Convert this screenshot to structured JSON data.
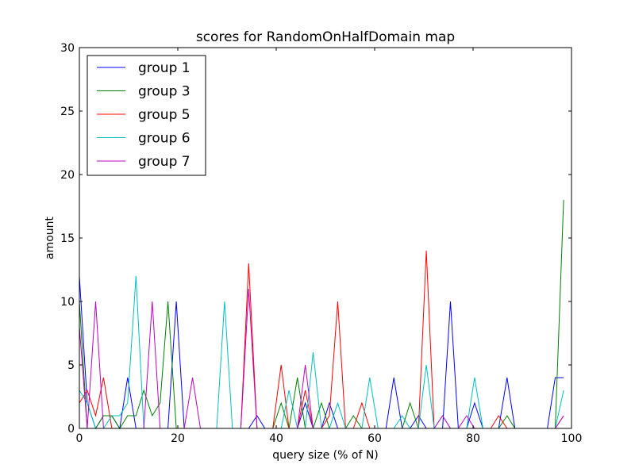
{
  "chart_data": {
    "type": "line",
    "title": "scores for RandomOnHalfDomain map",
    "xlabel": "query size (% of N)",
    "ylabel": "amount",
    "xlim": [
      0,
      100
    ],
    "ylim": [
      0,
      30
    ],
    "xticks": [
      0,
      20,
      40,
      60,
      80,
      100
    ],
    "yticks": [
      0,
      5,
      10,
      15,
      20,
      25,
      30
    ],
    "grid": false,
    "legend_position": "upper-left",
    "series": [
      {
        "name": "group 1",
        "color": "#0000ff",
        "x": [
          0,
          1.6,
          3.3,
          4.9,
          6.6,
          8.2,
          9.8,
          11.5,
          13.1,
          14.8,
          16.4,
          18,
          19.7,
          21.3,
          23,
          24.6,
          26.2,
          27.9,
          29.5,
          31.1,
          32.8,
          34.4,
          36.1,
          37.7,
          39.3,
          41,
          42.6,
          44.3,
          45.9,
          47.5,
          49.2,
          50.8,
          52.5,
          54.1,
          55.7,
          57.4,
          59,
          60.7,
          62.3,
          63.9,
          65.6,
          67.2,
          68.9,
          70.5,
          72.1,
          73.8,
          75.4,
          77,
          78.7,
          80.3,
          82,
          83.6,
          85.2,
          86.9,
          88.5,
          90.2,
          91.8,
          93.4,
          95.1,
          96.7,
          98.4
        ],
        "y": [
          12,
          2,
          0,
          1,
          1,
          0,
          4,
          0,
          0,
          0,
          0,
          0,
          10,
          0,
          0,
          0,
          0,
          0,
          0,
          0,
          0,
          0,
          1,
          0,
          0,
          0,
          0,
          0,
          2,
          0,
          0,
          2,
          0,
          0,
          0,
          0,
          0,
          0,
          0,
          4,
          0,
          0,
          1,
          0,
          0,
          0,
          10,
          0,
          0,
          2,
          0,
          0,
          0,
          4,
          0,
          0,
          0,
          0,
          0,
          4,
          4
        ]
      },
      {
        "name": "group 3",
        "color": "#008000",
        "x": [
          0,
          1.6,
          3.3,
          4.9,
          6.6,
          8.2,
          9.8,
          11.5,
          13.1,
          14.8,
          16.4,
          18,
          19.7,
          21.3,
          23,
          24.6,
          26.2,
          27.9,
          29.5,
          31.1,
          32.8,
          34.4,
          36.1,
          37.7,
          39.3,
          41,
          42.6,
          44.3,
          45.9,
          47.5,
          49.2,
          50.8,
          52.5,
          54.1,
          55.7,
          57.4,
          59,
          60.7,
          62.3,
          63.9,
          65.6,
          67.2,
          68.9,
          70.5,
          72.1,
          73.8,
          75.4,
          77,
          78.7,
          80.3,
          82,
          83.6,
          85.2,
          86.9,
          88.5,
          90.2,
          91.8,
          93.4,
          95.1,
          96.7,
          98.4
        ],
        "y": [
          10,
          0,
          0,
          1,
          1,
          0,
          1,
          1,
          3,
          1,
          2,
          10,
          0,
          0,
          0,
          0,
          0,
          0,
          0,
          0,
          0,
          0,
          0,
          0,
          0,
          2,
          0,
          4,
          0,
          0,
          2,
          0,
          0,
          0,
          1,
          0,
          0,
          0,
          0,
          0,
          0,
          2,
          0,
          0,
          0,
          0,
          0,
          0,
          0,
          0,
          0,
          0,
          0,
          1,
          0,
          0,
          0,
          0,
          0,
          0,
          18
        ]
      },
      {
        "name": "group 5",
        "color": "#ff0000",
        "x": [
          0,
          1.6,
          3.3,
          4.9,
          6.6,
          8.2,
          9.8,
          11.5,
          13.1,
          14.8,
          16.4,
          18,
          19.7,
          21.3,
          23,
          24.6,
          26.2,
          27.9,
          29.5,
          31.1,
          32.8,
          34.4,
          36.1,
          37.7,
          39.3,
          41,
          42.6,
          44.3,
          45.9,
          47.5,
          49.2,
          50.8,
          52.5,
          54.1,
          55.7,
          57.4,
          59,
          60.7,
          62.3,
          63.9,
          65.6,
          67.2,
          68.9,
          70.5,
          72.1,
          73.8,
          75.4,
          77,
          78.7,
          80.3,
          82,
          83.6,
          85.2,
          86.9,
          88.5,
          90.2,
          91.8,
          93.4,
          95.1,
          96.7,
          98.4
        ],
        "y": [
          2,
          3,
          1,
          4,
          0,
          0,
          0,
          0,
          0,
          0,
          0,
          0,
          0,
          0,
          0,
          0,
          0,
          0,
          0,
          0,
          0,
          13,
          0,
          0,
          0,
          5,
          0,
          0,
          3,
          0,
          0,
          1,
          10,
          0,
          0,
          2,
          0,
          0,
          0,
          0,
          0,
          0,
          0,
          14,
          0,
          0,
          0,
          0,
          0,
          0,
          0,
          0,
          1,
          0,
          0,
          0,
          0,
          0,
          0,
          0,
          1
        ]
      },
      {
        "name": "group 6",
        "color": "#00bfbf",
        "x": [
          0,
          1.6,
          3.3,
          4.9,
          6.6,
          8.2,
          9.8,
          11.5,
          13.1,
          14.8,
          16.4,
          18,
          19.7,
          21.3,
          23,
          24.6,
          26.2,
          27.9,
          29.5,
          31.1,
          32.8,
          34.4,
          36.1,
          37.7,
          39.3,
          41,
          42.6,
          44.3,
          45.9,
          47.5,
          49.2,
          50.8,
          52.5,
          54.1,
          55.7,
          57.4,
          59,
          60.7,
          62.3,
          63.9,
          65.6,
          67.2,
          68.9,
          70.5,
          72.1,
          73.8,
          75.4,
          77,
          78.7,
          80.3,
          82,
          83.6,
          85.2,
          86.9,
          88.5,
          90.2,
          91.8,
          93.4,
          95.1,
          96.7,
          98.4
        ],
        "y": [
          3,
          2,
          0,
          0,
          1,
          1,
          2,
          12,
          0,
          0,
          0,
          0,
          0,
          0,
          0,
          0,
          0,
          0,
          10,
          0,
          0,
          0,
          0,
          0,
          0,
          0,
          3,
          0,
          0,
          6,
          0,
          0,
          2,
          0,
          0,
          0,
          4,
          0,
          0,
          0,
          1,
          0,
          0,
          5,
          0,
          1,
          0,
          0,
          0,
          4,
          0,
          0,
          0,
          0,
          0,
          0,
          0,
          0,
          0,
          0,
          3
        ]
      },
      {
        "name": "group 7",
        "color": "#bf00bf",
        "x": [
          0,
          1.6,
          3.3,
          4.9,
          6.6,
          8.2,
          9.8,
          11.5,
          13.1,
          14.8,
          16.4,
          18,
          19.7,
          21.3,
          23,
          24.6,
          26.2,
          27.9,
          29.5,
          31.1,
          32.8,
          34.4,
          36.1,
          37.7,
          39.3,
          41,
          42.6,
          44.3,
          45.9,
          47.5,
          49.2,
          50.8,
          52.5,
          54.1,
          55.7,
          57.4,
          59,
          60.7,
          62.3,
          63.9,
          65.6,
          67.2,
          68.9,
          70.5,
          72.1,
          73.8,
          75.4,
          77,
          78.7,
          80.3,
          82,
          83.6,
          85.2,
          86.9,
          88.5,
          90.2,
          91.8,
          93.4,
          95.1,
          96.7,
          98.4
        ],
        "y": [
          8,
          0,
          10,
          0,
          0,
          0,
          0,
          0,
          0,
          10,
          0,
          0,
          0,
          0,
          4,
          0,
          0,
          0,
          0,
          0,
          0,
          11,
          0,
          0,
          0,
          0,
          0,
          0,
          5,
          0,
          0,
          0,
          0,
          0,
          0,
          0,
          0,
          0,
          0,
          0,
          0,
          0,
          0,
          0,
          0,
          1,
          0,
          0,
          1,
          0,
          0,
          0,
          0,
          0,
          0,
          0,
          0,
          0,
          0,
          0,
          1
        ]
      }
    ]
  }
}
